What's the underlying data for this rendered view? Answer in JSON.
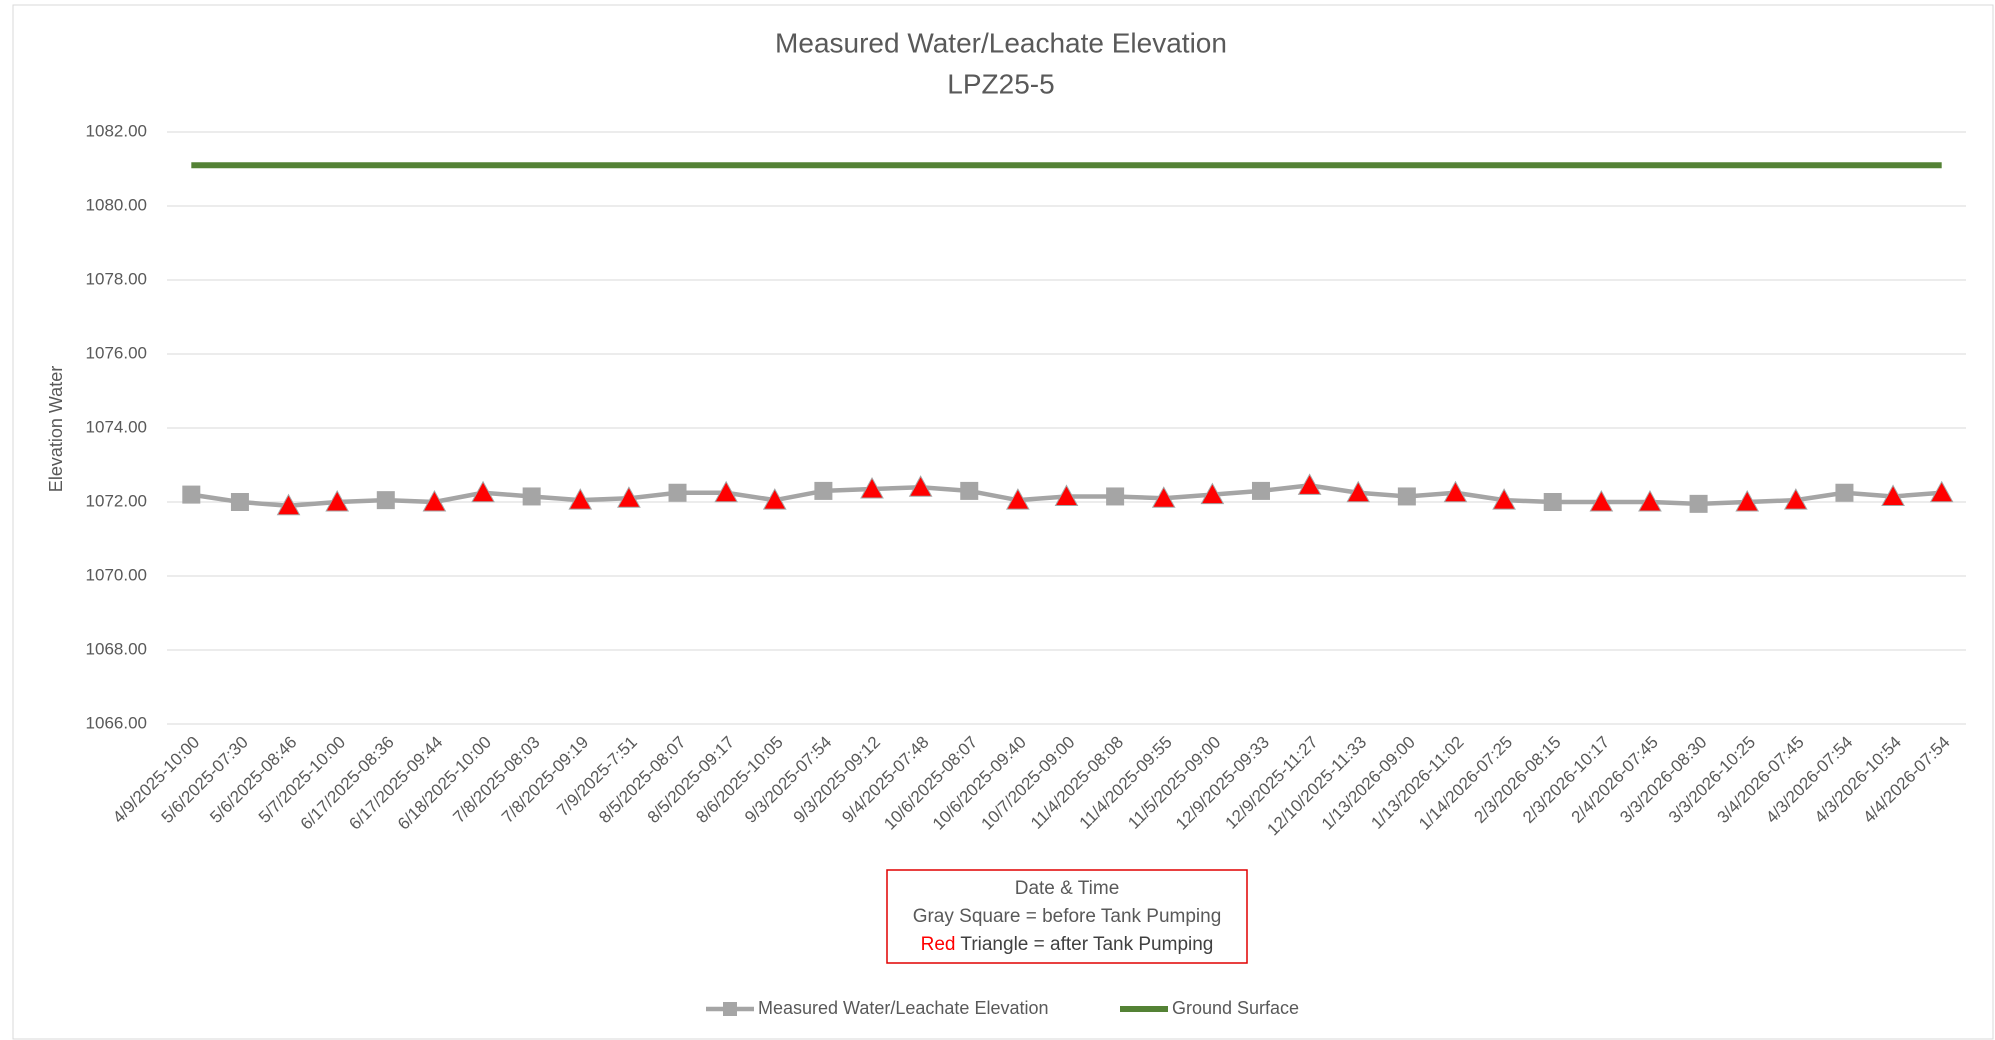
{
  "chart_data": {
    "type": "line",
    "title": "Measured Water/Leachate Elevation",
    "subtitle": "LPZ25-5",
    "y_label": "Elevation Water",
    "x_label": "Date & Time",
    "annotation_lines": [
      "Gray Square  = before Tank Pumping"
    ],
    "annotation_parts": [
      {
        "text": "Red",
        "color": "#ff0000"
      },
      {
        "text": " Triangle = after Tank Pumping",
        "color": "#404040"
      }
    ],
    "categories": [
      "4/9/2025-10:00",
      "5/6/2025-07:30",
      "5/6/2025-08:46",
      "5/7/2025-10:00",
      "6/17/2025-08:36",
      "6/17/2025-09:44",
      "6/18/2025-10:00",
      "7/8/2025-08:03",
      "7/8/2025-09:19",
      "7/9/2025-7:51",
      "8/5/2025-08:07",
      "8/5/2025-09:17",
      "8/6/2025-10:05",
      "9/3/2025-07:54",
      "9/3/2025-09:12",
      "9/4/2025-07:48",
      "10/6/2025-08:07",
      "10/6/2025-09:40",
      "10/7/2025-09:00",
      "11/4/2025-08:08",
      "11/4/2025-09:55",
      "11/5/2025-09:00",
      "12/9/2025-09:33",
      "12/9/2025-11:27",
      "12/10/2025-11:33",
      "1/13/2026-09:00",
      "1/13/2026-11:02",
      "1/14/2026-07:25",
      "2/3/2026-08:15",
      "2/3/2026-10:17",
      "2/4/2026-07:45",
      "3/3/2026-08:30",
      "3/3/2026-10:25",
      "3/4/2026-07:45",
      "4/3/2026-07:54",
      "4/3/2026-10:54",
      "4/4/2026-07:54"
    ],
    "series": [
      {
        "name": "Measured Water/Leachate Elevation",
        "color": "#a5a5a5",
        "triangle_color": "#ff0000",
        "values": [
          1072.2,
          1072.0,
          1071.9,
          1072.0,
          1072.05,
          1072.0,
          1072.25,
          1072.15,
          1072.05,
          1072.1,
          1072.25,
          1072.25,
          1072.05,
          1072.3,
          1072.35,
          1072.4,
          1072.3,
          1072.05,
          1072.15,
          1072.15,
          1072.1,
          1072.2,
          1072.3,
          1072.45,
          1072.25,
          1072.15,
          1072.25,
          1072.05,
          1072.0,
          1072.0,
          1072.0,
          1071.95,
          1072.0,
          1072.05,
          1072.25,
          1072.15,
          1072.25
        ],
        "markers": [
          "square",
          "square",
          "triangle",
          "triangle",
          "square",
          "triangle",
          "triangle",
          "square",
          "triangle",
          "triangle",
          "square",
          "triangle",
          "triangle",
          "square",
          "triangle",
          "triangle",
          "square",
          "triangle",
          "triangle",
          "square",
          "triangle",
          "triangle",
          "square",
          "triangle",
          "triangle",
          "square",
          "triangle",
          "triangle",
          "square",
          "triangle",
          "triangle",
          "square",
          "triangle",
          "triangle",
          "square",
          "triangle",
          "triangle"
        ]
      },
      {
        "name": "Ground Surface",
        "color": "#548235",
        "values": [
          1081.1,
          1081.1,
          1081.1,
          1081.1,
          1081.1,
          1081.1,
          1081.1,
          1081.1,
          1081.1,
          1081.1,
          1081.1,
          1081.1,
          1081.1,
          1081.1,
          1081.1,
          1081.1,
          1081.1,
          1081.1,
          1081.1,
          1081.1,
          1081.1,
          1081.1,
          1081.1,
          1081.1,
          1081.1,
          1081.1,
          1081.1,
          1081.1,
          1081.1,
          1081.1,
          1081.1,
          1081.1,
          1081.1,
          1081.1,
          1081.1,
          1081.1,
          1081.1
        ]
      }
    ],
    "ylim": [
      1066,
      1082
    ],
    "yticks": [
      {
        "value": 1066,
        "label": "1066.00"
      },
      {
        "value": 1068,
        "label": "1068.00"
      },
      {
        "value": 1070,
        "label": "1070.00"
      },
      {
        "value": 1072,
        "label": "1072.00"
      },
      {
        "value": 1074,
        "label": "1074.00"
      },
      {
        "value": 1076,
        "label": "1076.00"
      },
      {
        "value": 1078,
        "label": "1078.00"
      },
      {
        "value": 1080,
        "label": "1080.00"
      },
      {
        "value": 1082,
        "label": "1082.00"
      }
    ],
    "grid": true
  }
}
